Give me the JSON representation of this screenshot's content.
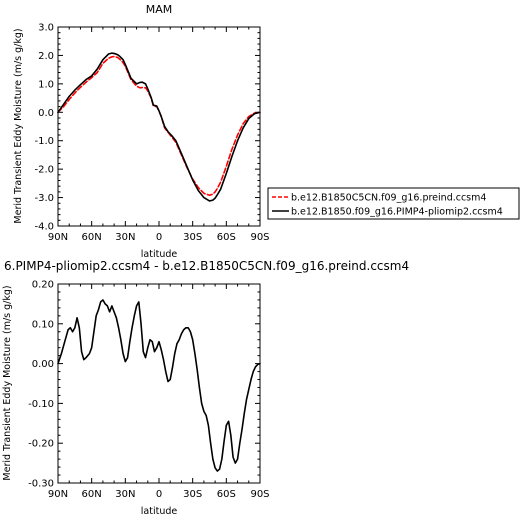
{
  "chart_data": [
    {
      "type": "line",
      "title": "MAM",
      "xlabel": "latitude",
      "ylabel": "Merid Transient Eddy Moisture (m/s g/kg)",
      "xlim": [
        90,
        -90
      ],
      "ylim": [
        -4.0,
        3.0
      ],
      "x_ticks": [
        "90N",
        "60N",
        "30N",
        "0",
        "30S",
        "60S",
        "90S"
      ],
      "x_tick_values": [
        90,
        60,
        30,
        0,
        -30,
        -60,
        -90
      ],
      "y_ticks": [
        "-4.0",
        "-3.0",
        "-2.0",
        "-1.0",
        "0.0",
        "1.0",
        "2.0",
        "3.0"
      ],
      "y_tick_values": [
        -4,
        -3,
        -2,
        -1,
        0,
        1,
        2,
        3
      ],
      "legend": "right",
      "series": [
        {
          "name": "b.e12.B1850C5CN.f09_g16.preind.ccsm4",
          "color": "#ff0000",
          "style": "dashed",
          "x": [
            90,
            85,
            80,
            75,
            70,
            65,
            60,
            55,
            50,
            45,
            42,
            40,
            37,
            35,
            32,
            30,
            25,
            20,
            17,
            15,
            12,
            10,
            7,
            5,
            2,
            0,
            -2,
            -5,
            -8,
            -12,
            -15,
            -20,
            -25,
            -30,
            -35,
            -40,
            -45,
            -48,
            -50,
            -52,
            -55,
            -60,
            -65,
            -70,
            -75,
            -80,
            -85,
            -90
          ],
          "y": [
            0.0,
            0.2,
            0.45,
            0.68,
            0.88,
            1.06,
            1.22,
            1.4,
            1.72,
            1.9,
            1.95,
            1.96,
            1.93,
            1.87,
            1.75,
            1.62,
            1.15,
            0.92,
            0.86,
            0.87,
            0.86,
            0.75,
            0.5,
            0.22,
            0.2,
            0.05,
            -0.15,
            -0.55,
            -0.7,
            -0.9,
            -1.05,
            -1.5,
            -1.95,
            -2.35,
            -2.65,
            -2.85,
            -2.92,
            -2.88,
            -2.8,
            -2.68,
            -2.45,
            -1.9,
            -1.3,
            -0.8,
            -0.4,
            -0.15,
            -0.03,
            0.0
          ]
        },
        {
          "name": "b.e12.B1850.f09_g16.PIMP4-pliomip2.ccsm4",
          "color": "#000000",
          "style": "solid",
          "x": [
            90,
            85,
            80,
            75,
            70,
            65,
            60,
            55,
            50,
            45,
            42,
            40,
            37,
            35,
            32,
            30,
            25,
            20,
            17,
            15,
            12,
            10,
            7,
            5,
            2,
            0,
            -2,
            -5,
            -8,
            -12,
            -15,
            -20,
            -25,
            -30,
            -35,
            -40,
            -45,
            -48,
            -50,
            -52,
            -55,
            -60,
            -65,
            -70,
            -75,
            -80,
            -85,
            -90
          ],
          "y": [
            0.0,
            0.28,
            0.56,
            0.78,
            0.97,
            1.15,
            1.28,
            1.52,
            1.85,
            2.05,
            2.08,
            2.07,
            2.03,
            1.97,
            1.85,
            1.68,
            1.2,
            1.0,
            1.05,
            1.06,
            1.0,
            0.82,
            0.52,
            0.25,
            0.22,
            0.05,
            -0.15,
            -0.5,
            -0.68,
            -0.85,
            -1.0,
            -1.45,
            -1.92,
            -2.38,
            -2.75,
            -3.0,
            -3.12,
            -3.09,
            -3.02,
            -2.9,
            -2.7,
            -2.15,
            -1.55,
            -1.0,
            -0.55,
            -0.22,
            -0.05,
            0.0
          ]
        }
      ]
    },
    {
      "type": "line",
      "title": "6.PIMP4-pliomip2.ccsm4 - b.e12.B1850C5CN.f09_g16.preind.ccsm4",
      "xlabel": "latitude",
      "ylabel": "Merid Transient Eddy Moisture (m/s g/kg)",
      "xlim": [
        90,
        -90
      ],
      "ylim": [
        -0.3,
        0.2
      ],
      "x_ticks": [
        "90N",
        "60N",
        "30N",
        "0",
        "30S",
        "60S",
        "90S"
      ],
      "x_tick_values": [
        90,
        60,
        30,
        0,
        -30,
        -60,
        -90
      ],
      "y_ticks": [
        "-0.30",
        "-0.20",
        "-0.10",
        "0.00",
        "0.10",
        "0.20"
      ],
      "y_tick_values": [
        -0.3,
        -0.2,
        -0.1,
        0.0,
        0.1,
        0.2
      ],
      "series": [
        {
          "color": "#000000",
          "style": "solid",
          "x": [
            90,
            87,
            84,
            81,
            79,
            77,
            75,
            73,
            71,
            69,
            67,
            65,
            62,
            60,
            58,
            56,
            54,
            52,
            50,
            48,
            46,
            44,
            42,
            40,
            38,
            36,
            34,
            32,
            30,
            28,
            26,
            24,
            22,
            20,
            18,
            16,
            14,
            12,
            10,
            8,
            6,
            4,
            2,
            0,
            -2,
            -4,
            -6,
            -8,
            -10,
            -12,
            -14,
            -16,
            -18,
            -20,
            -22,
            -24,
            -26,
            -28,
            -30,
            -32,
            -34,
            -36,
            -38,
            -40,
            -42,
            -44,
            -46,
            -48,
            -50,
            -52,
            -54,
            -56,
            -58,
            -60,
            -62,
            -64,
            -66,
            -68,
            -70,
            -72,
            -74,
            -76,
            -78,
            -80,
            -82,
            -84,
            -86,
            -88,
            -90
          ],
          "y": [
            0.0,
            0.025,
            0.055,
            0.085,
            0.09,
            0.08,
            0.09,
            0.115,
            0.09,
            0.03,
            0.01,
            0.015,
            0.025,
            0.04,
            0.08,
            0.12,
            0.135,
            0.155,
            0.16,
            0.15,
            0.145,
            0.13,
            0.145,
            0.13,
            0.115,
            0.09,
            0.06,
            0.025,
            0.005,
            0.015,
            0.055,
            0.09,
            0.12,
            0.145,
            0.155,
            0.1,
            0.03,
            0.015,
            0.04,
            0.06,
            0.055,
            0.03,
            0.04,
            0.055,
            0.035,
            0.01,
            -0.02,
            -0.045,
            -0.04,
            -0.01,
            0.025,
            0.05,
            0.06,
            0.075,
            0.085,
            0.09,
            0.09,
            0.08,
            0.06,
            0.025,
            -0.015,
            -0.06,
            -0.1,
            -0.12,
            -0.13,
            -0.155,
            -0.2,
            -0.24,
            -0.262,
            -0.27,
            -0.265,
            -0.24,
            -0.195,
            -0.155,
            -0.145,
            -0.18,
            -0.235,
            -0.25,
            -0.24,
            -0.2,
            -0.165,
            -0.125,
            -0.09,
            -0.065,
            -0.04,
            -0.02,
            -0.008,
            -0.002,
            0.0
          ]
        }
      ]
    }
  ]
}
